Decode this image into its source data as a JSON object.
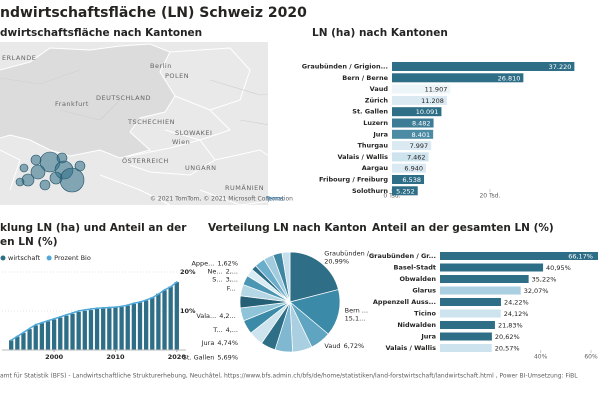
{
  "header": {
    "title": "ndwirtschaftsfläche (LN) Schweiz 2020"
  },
  "map": {
    "title": "dwirtschaftsfläche nach Kantonen",
    "labels": [
      "ERLANDE",
      "POLEN",
      "DEUTSCHLAND",
      "Berlin",
      "Frankfurt",
      "TSCHECHIEN",
      "SLOWAKEI",
      "ÖSTERREICH",
      "UNGARN",
      "RUMÄNIEN",
      "Wien"
    ],
    "copyright": "© 2021 TomTom, © 2021 Microsoft Corporation",
    "terms": "Terms"
  },
  "chart_data": [
    {
      "type": "bar",
      "orientation": "horizontal",
      "title": "LN (ha) nach Kantonen",
      "categories": [
        "Graubünden / Grigion...",
        "Bern / Berne",
        "Vaud",
        "Zürich",
        "St. Gallen",
        "Luzern",
        "Jura",
        "Thurgau",
        "Valais / Wallis",
        "Aargau",
        "Fribourg / Freiburg",
        "Solothurn"
      ],
      "values": [
        37220,
        26810,
        11907,
        11208,
        10091,
        8482,
        8401,
        7997,
        7462,
        6940,
        6538,
        5252
      ],
      "value_labels": [
        "37.220",
        "26.810",
        "11.907",
        "11.208",
        "10.091",
        "8.482",
        "8.401",
        "7.997",
        "7.462",
        "6.940",
        "6.538",
        "5.252"
      ],
      "colors": [
        "#2e6e87",
        "#2e6e87",
        "#eef5f9",
        "#dbe9f2",
        "#2e6e87",
        "#3d7c96",
        "#4d8ba5",
        "#dbe9f2",
        "#cde3ee",
        "#dbe9f2",
        "#2e6e87",
        "#2e6e87"
      ],
      "xlim": [
        0,
        40000
      ],
      "xticks": [
        {
          "value": 0,
          "label": "0 Tsd."
        },
        {
          "value": 20000,
          "label": "20 Tsd."
        }
      ]
    },
    {
      "type": "combo",
      "title": [
        "klung LN (ha) und Anteil an der",
        "en LN (%)"
      ],
      "x": [
        1993,
        1994,
        1995,
        1996,
        1997,
        1998,
        1999,
        2000,
        2001,
        2002,
        2003,
        2004,
        2005,
        2006,
        2007,
        2008,
        2009,
        2010,
        2011,
        2012,
        2013,
        2014,
        2015,
        2016,
        2017,
        2018,
        2019,
        2020
      ],
      "xlim": [
        1991.5,
        2021.5
      ],
      "xticks": [
        2000,
        2010,
        2020
      ],
      "ylim": [
        0,
        209000
      ],
      "y2lim": [
        0,
        20
      ],
      "y2ticks": [
        {
          "value": 10,
          "label": "10%"
        },
        {
          "value": 20,
          "label": "20%"
        }
      ],
      "series": [
        {
          "name": "wirtschaft",
          "color": "#2e6e87",
          "axis": "y",
          "values": [
            26000,
            36000,
            46000,
            56000,
            66000,
            72000,
            77000,
            82000,
            87000,
            92000,
            97000,
            102000,
            105000,
            107000,
            110000,
            111000,
            112000,
            114000,
            116000,
            119000,
            124000,
            128000,
            133000,
            141000,
            151000,
            160000,
            170000,
            182000
          ]
        },
        {
          "name": "Prozent Bio",
          "color": "#4fa8d8",
          "axis": "y2",
          "values": [
            2.5,
            3.5,
            4.5,
            5.5,
            6.5,
            7.0,
            7.5,
            8.0,
            8.5,
            9.0,
            9.5,
            10.0,
            10.3,
            10.5,
            10.7,
            10.8,
            10.9,
            11.0,
            11.2,
            11.5,
            12.0,
            12.3,
            12.8,
            13.4,
            14.3,
            15.4,
            16.2,
            17.4
          ]
        }
      ]
    },
    {
      "type": "pie",
      "title": "Verteilung LN nach Kanton",
      "categories": [
        "Graubünden / ...",
        "Bern ...",
        "Vaud",
        null,
        "St. Gallen",
        null,
        "Jura",
        "T...",
        "Vala...",
        null,
        "F...",
        "S...",
        "Ne...",
        "Appe...",
        null,
        null,
        null,
        null
      ],
      "values": [
        20.99,
        15.12,
        6.72,
        6.32,
        5.69,
        4.78,
        4.74,
        4.51,
        4.21,
        3.91,
        3.69,
        3.1,
        2.5,
        1.62,
        3.4,
        3.2,
        2.9,
        2.6
      ],
      "value_labels": [
        "20,99%",
        "15,1...",
        "6,72%",
        null,
        "5,69%",
        null,
        "4,74%",
        "4,...",
        "4,2...",
        null,
        null,
        "3,...",
        "2,...",
        "1,62%",
        null,
        null,
        null,
        null
      ],
      "colors": [
        "#2e6e87",
        "#3b8aa8",
        "#5fa4c0",
        "#a9cfe0",
        "#7fb8d0",
        "#2e6e87",
        "#cde3ee",
        "#3b8aa8",
        "#8ec3d8",
        "#256077",
        "#b5d6e4",
        "#4c96b3",
        "#d9ebf3",
        "#2e6e87",
        "#6aaecb",
        "#a2cbdd",
        "#3f86a3",
        "#c4dfeb"
      ]
    },
    {
      "type": "bar",
      "orientation": "horizontal",
      "title": "Anteil an der gesamten LN (%)",
      "categories": [
        "Graubünden / Gr...",
        "Basel-Stadt",
        "Obwalden",
        "Glarus",
        "Appenzell Auss...",
        "Ticino",
        "Nidwalden",
        "Jura",
        "Valais / Wallis"
      ],
      "values": [
        66.17,
        40.95,
        35.22,
        32.07,
        24.22,
        24.12,
        21.83,
        20.62,
        20.57
      ],
      "value_labels": [
        "66,17%",
        "40,95%",
        "35,22%",
        "32,07%",
        "24,22%",
        "24,12%",
        "21,83%",
        "20,62%",
        "20,57%"
      ],
      "colors": [
        "#2e6e87",
        "#2e6e87",
        "#2e6e87",
        "#a9cfe0",
        "#2e6e87",
        "#cde3ee",
        "#2e6e87",
        "#2e6e87",
        "#cde3ee"
      ],
      "xlim": [
        0,
        60
      ],
      "xticks": [
        {
          "value": 40,
          "label": "40%"
        },
        {
          "value": 60,
          "label": "60%"
        }
      ]
    }
  ],
  "footer": "amt für Statistik (BFS) - Landwirtschaftliche Strukturerhebung, Neuchâtel, https://www.bfs.admin.ch/bfs/de/home/statistiken/land-forstwirtschaft/landwirtschaft.html , Power BI-Umsetzung: FiBL"
}
